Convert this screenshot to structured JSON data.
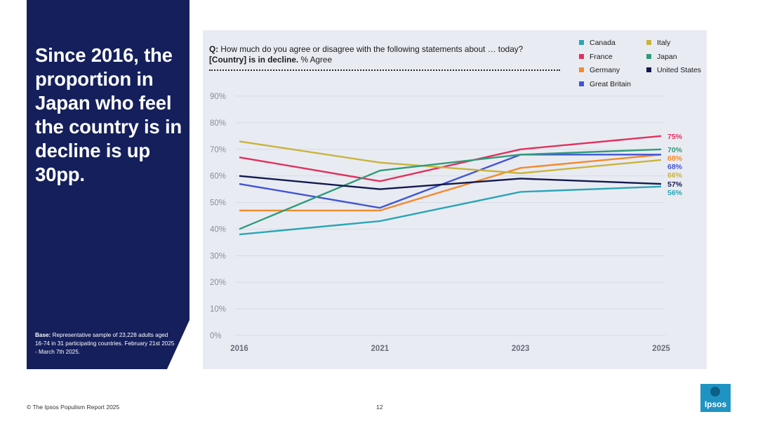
{
  "headline": "Since 2016, the proportion in Japan who feel the country is in decline is up 30pp.",
  "base_note": {
    "label": "Base:",
    "text": "Representative sample of 23,228 adults aged 16-74 in 31 participating countries. February 21st 2025 - March 7th 2025."
  },
  "question": {
    "prefix": "Q:",
    "text": "How much do you agree or disagree with the following statements about … today?",
    "statement": "[Country] is in decline.",
    "suffix": "% Agree"
  },
  "footer": {
    "source": "© The Ipsos Populism Report 2025",
    "page": "12",
    "logo": "Ipsos"
  },
  "chart_data": {
    "type": "line",
    "title": "",
    "xlabel": "",
    "ylabel": "",
    "x": [
      "2016",
      "2021",
      "2023",
      "2025"
    ],
    "ylim": [
      0,
      90
    ],
    "yticks": [
      "0%",
      "10%",
      "20%",
      "30%",
      "40%",
      "50%",
      "60%",
      "70%",
      "80%",
      "90%"
    ],
    "grid": true,
    "legend_position": "top-right",
    "series": [
      {
        "name": "Canada",
        "color": "#2aa6b6",
        "values": [
          38,
          43,
          54,
          56
        ],
        "end_label": "56%"
      },
      {
        "name": "France",
        "color": "#e0325c",
        "values": [
          67,
          58,
          70,
          75
        ],
        "end_label": "75%"
      },
      {
        "name": "Germany",
        "color": "#f58a2b",
        "values": [
          47,
          47,
          63,
          68
        ],
        "end_label": "68%"
      },
      {
        "name": "Great Britain",
        "color": "#4255d4",
        "values": [
          57,
          48,
          68,
          68
        ],
        "end_label": "68%"
      },
      {
        "name": "Italy",
        "color": "#c8b43a",
        "values": [
          73,
          65,
          61,
          66
        ],
        "end_label": "66%"
      },
      {
        "name": "Japan",
        "color": "#2e9c7a",
        "values": [
          40,
          62,
          68,
          70
        ],
        "end_label": "70%"
      },
      {
        "name": "United States",
        "color": "#141a4e",
        "values": [
          60,
          55,
          59,
          57
        ],
        "end_label": "57%"
      }
    ]
  }
}
